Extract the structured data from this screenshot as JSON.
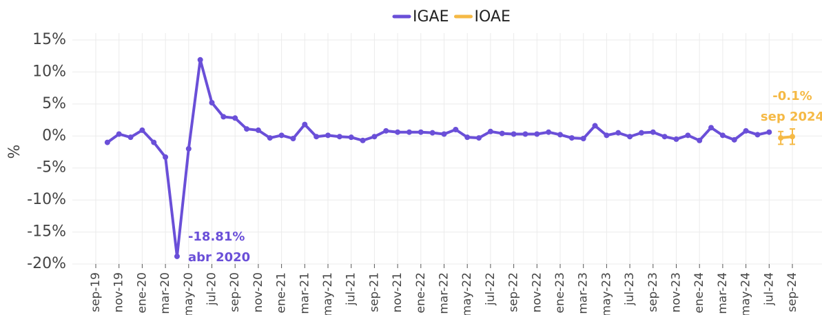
{
  "chart_data": {
    "type": "line",
    "ylabel": "%",
    "categories": [
      "sep-19",
      null,
      "nov-19",
      null,
      "ene-20",
      null,
      "mar-20",
      null,
      "may-20",
      null,
      "jul-20",
      null,
      "sep-20",
      null,
      "nov-20",
      null,
      "ene-21",
      null,
      "mar-21",
      null,
      "may-21",
      null,
      "jul-21",
      null,
      "sep-21",
      null,
      "nov-21",
      null,
      "ene-22",
      null,
      "mar-22",
      null,
      "may-22",
      null,
      "jul-22",
      null,
      "sep-22",
      null,
      "nov-22",
      null,
      "ene-23",
      null,
      "mar-23",
      null,
      "may-23",
      null,
      "jul-23",
      null,
      "sep-23",
      null,
      "nov-23",
      null,
      "ene-24",
      null,
      "mar-24",
      null,
      "may-24",
      null,
      "jul-24",
      null,
      "sep-24"
    ],
    "series": [
      {
        "name": "IGAE",
        "color": "#6a4fd8",
        "values": [
          null,
          -1.0,
          0.3,
          -0.2,
          0.9,
          -1.0,
          -3.3,
          -18.81,
          -2.0,
          11.9,
          5.2,
          3.0,
          2.8,
          1.1,
          0.9,
          -0.3,
          0.1,
          -0.4,
          1.8,
          -0.1,
          0.1,
          -0.1,
          -0.2,
          -0.7,
          -0.1,
          0.8,
          0.6,
          0.6,
          0.6,
          0.5,
          0.3,
          1.0,
          -0.2,
          -0.3,
          0.7,
          0.4,
          0.3,
          0.3,
          0.3,
          0.6,
          0.2,
          -0.3,
          -0.4,
          1.6,
          0.1,
          0.5,
          -0.1,
          0.5,
          0.6,
          -0.1,
          -0.5,
          0.1,
          -0.7,
          1.3,
          0.1,
          -0.6,
          0.8,
          0.2,
          0.6,
          null,
          null
        ]
      },
      {
        "name": "IOAE",
        "color": "#f5b945",
        "values": [
          null,
          null,
          null,
          null,
          null,
          null,
          null,
          null,
          null,
          null,
          null,
          null,
          null,
          null,
          null,
          null,
          null,
          null,
          null,
          null,
          null,
          null,
          null,
          null,
          null,
          null,
          null,
          null,
          null,
          null,
          null,
          null,
          null,
          null,
          null,
          null,
          null,
          null,
          null,
          null,
          null,
          null,
          null,
          null,
          null,
          null,
          null,
          null,
          null,
          null,
          null,
          null,
          null,
          null,
          null,
          null,
          null,
          null,
          null,
          -0.3,
          -0.1
        ],
        "errors": [
          null,
          null,
          null,
          null,
          null,
          null,
          null,
          null,
          null,
          null,
          null,
          null,
          null,
          null,
          null,
          null,
          null,
          null,
          null,
          null,
          null,
          null,
          null,
          null,
          null,
          null,
          null,
          null,
          null,
          null,
          null,
          null,
          null,
          null,
          null,
          null,
          null,
          null,
          null,
          null,
          null,
          null,
          null,
          null,
          null,
          null,
          null,
          null,
          null,
          null,
          null,
          null,
          null,
          null,
          null,
          null,
          null,
          null,
          null,
          1.0,
          1.2
        ]
      }
    ],
    "annotations": [
      {
        "text": "-18.81%",
        "subtext": "abr 2020"
      },
      {
        "text": "-0.1%",
        "subtext": "sep 2024"
      }
    ],
    "ylim": [
      -20,
      15
    ],
    "yticks": [
      {
        "value": -20,
        "label": "-20%"
      },
      {
        "value": -15,
        "label": "-15%"
      },
      {
        "value": -10,
        "label": "-10%"
      },
      {
        "value": -5,
        "label": "-5%"
      },
      {
        "value": 0,
        "label": "0%"
      },
      {
        "value": 5,
        "label": "5%"
      },
      {
        "value": 10,
        "label": "10%"
      },
      {
        "value": 15,
        "label": "15%"
      }
    ],
    "grid": true,
    "legend": "top"
  }
}
